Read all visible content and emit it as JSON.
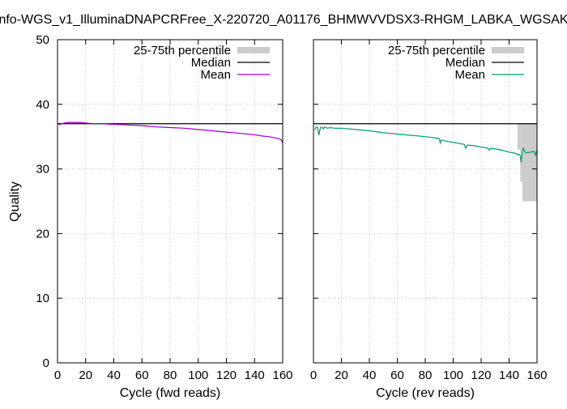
{
  "title": "nfo-WGS_v1_IlluminaDNAPCRFree_X-220720_A01176_BHMWVVDSX3-RHGM_LABKA_WGSAK",
  "ylabel": "Quality",
  "legend_labels": {
    "percentile": "25-75th percentile",
    "median": "Median",
    "mean": "Mean"
  },
  "colors": {
    "percentile_fill": "#cccccc",
    "median": "#000000",
    "mean_fwd": "#9400d3",
    "mean_rev": "#009e73",
    "grid": "#bbbbbb"
  },
  "chart_data": [
    {
      "type": "line",
      "xlabel": "Cycle (fwd reads)",
      "xlim": [
        0,
        160
      ],
      "ylim": [
        0,
        50
      ],
      "xticks": [
        0,
        20,
        40,
        60,
        80,
        100,
        120,
        140,
        160
      ],
      "yticks": [
        0,
        10,
        20,
        30,
        40,
        50
      ],
      "grid": true,
      "legend_position": "top-right",
      "median": {
        "x": [
          0,
          160
        ],
        "y": [
          37,
          37
        ]
      },
      "percentile_bands": [],
      "mean": {
        "x": [
          1,
          2,
          3,
          5,
          8,
          12,
          16,
          20,
          25,
          30,
          40,
          50,
          60,
          70,
          80,
          90,
          100,
          110,
          120,
          130,
          140,
          145,
          150,
          155,
          157,
          158,
          159,
          160
        ],
        "y": [
          36.8,
          36.9,
          37.0,
          37.1,
          37.2,
          37.2,
          37.2,
          37.1,
          37.0,
          37.0,
          36.9,
          36.8,
          36.7,
          36.5,
          36.4,
          36.3,
          36.1,
          35.9,
          35.7,
          35.5,
          35.3,
          35.1,
          35.0,
          34.8,
          34.7,
          34.6,
          34.5,
          34.0
        ]
      }
    },
    {
      "type": "line",
      "xlabel": "Cycle (rev reads)",
      "xlim": [
        0,
        160
      ],
      "ylim": [
        0,
        50
      ],
      "xticks": [
        0,
        20,
        40,
        60,
        80,
        100,
        120,
        140,
        160
      ],
      "yticks": [
        0,
        10,
        20,
        30,
        40,
        50
      ],
      "grid": true,
      "legend_position": "top-right",
      "median": {
        "x": [
          0,
          160
        ],
        "y": [
          37,
          37
        ]
      },
      "percentile_bands": [
        {
          "x0": 146,
          "x1": 148,
          "q1": 33,
          "q3": 37
        },
        {
          "x0": 148,
          "x1": 149.5,
          "q1": 28,
          "q3": 37
        },
        {
          "x0": 149.5,
          "x1": 151,
          "q1": 25,
          "q3": 37
        },
        {
          "x0": 151,
          "x1": 160,
          "q1": 25,
          "q3": 37
        }
      ],
      "mean": {
        "x": [
          1,
          2,
          3,
          3.8,
          5,
          6,
          7,
          8,
          10,
          12,
          15,
          20,
          30,
          40,
          50,
          60,
          70,
          80,
          90,
          90.8,
          91.5,
          95,
          100,
          108,
          109,
          110,
          115,
          120,
          125,
          126,
          127,
          130,
          135,
          140,
          145,
          146,
          147,
          148,
          148.7,
          149.3,
          150,
          152,
          155,
          158,
          159,
          160
        ],
        "y": [
          36.0,
          36.5,
          36.4,
          35.2,
          36.4,
          36.5,
          36.2,
          36.5,
          36.3,
          36.4,
          36.3,
          36.3,
          36.1,
          35.9,
          35.6,
          35.4,
          35.2,
          35.0,
          34.7,
          34.0,
          34.5,
          34.3,
          34.1,
          33.8,
          33.2,
          33.7,
          33.6,
          33.4,
          33.2,
          32.9,
          33.2,
          33.1,
          32.9,
          32.6,
          32.4,
          32.2,
          32.3,
          32.0,
          31.0,
          32.2,
          33.2,
          32.5,
          32.6,
          32.7,
          32.1,
          33.0
        ]
      }
    }
  ]
}
